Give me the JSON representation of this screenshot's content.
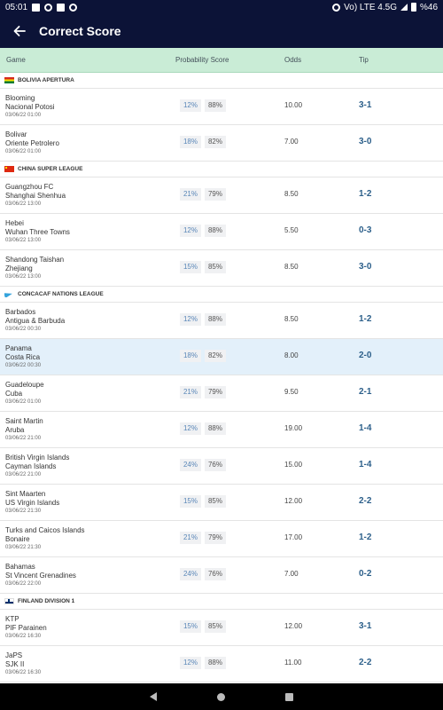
{
  "status": {
    "time": "05:01",
    "right_text": "Vo) LTE 4.5G",
    "battery": "%46"
  },
  "app": {
    "title": "Correct Score"
  },
  "columns": {
    "game": "Game",
    "prob": "Probability Score",
    "odds": "Odds",
    "tip": "Tip"
  },
  "leagues": [
    {
      "name": "BOLIVIA APERTURA",
      "flag": "bolivia-flag",
      "matches": [
        {
          "home": "Blooming",
          "away": "Nacional Potosi",
          "date": "03/06/22 01:00",
          "p1": "12%",
          "p2": "88%",
          "odds": "10.00",
          "tip": "3-1"
        },
        {
          "home": "Bolivar",
          "away": "Oriente Petrolero",
          "date": "03/06/22 01:00",
          "p1": "18%",
          "p2": "82%",
          "odds": "7.00",
          "tip": "3-0"
        }
      ]
    },
    {
      "name": "CHINA SUPER LEAGUE",
      "flag": "china-flag",
      "matches": [
        {
          "home": "Guangzhou FC",
          "away": "Shanghai Shenhua",
          "date": "03/06/22 13:00",
          "p1": "21%",
          "p2": "79%",
          "odds": "8.50",
          "tip": "1-2"
        },
        {
          "home": "Hebei",
          "away": "Wuhan Three Towns",
          "date": "03/06/22 13:00",
          "p1": "12%",
          "p2": "88%",
          "odds": "5.50",
          "tip": "0-3"
        },
        {
          "home": "Shandong Taishan",
          "away": "Zhejiang",
          "date": "03/06/22 13:00",
          "p1": "15%",
          "p2": "85%",
          "odds": "8.50",
          "tip": "3-0"
        }
      ]
    },
    {
      "name": "CONCACAF NATIONS LEAGUE",
      "flag": "concacaf-flag",
      "matches": [
        {
          "home": "Barbados",
          "away": "Antigua & Barbuda",
          "date": "03/06/22 00:30",
          "p1": "12%",
          "p2": "88%",
          "odds": "8.50",
          "tip": "1-2"
        },
        {
          "home": "Panama",
          "away": "Costa Rica",
          "date": "03/06/22 00:30",
          "p1": "18%",
          "p2": "82%",
          "odds": "8.00",
          "tip": "2-0",
          "selected": true
        },
        {
          "home": "Guadeloupe",
          "away": "Cuba",
          "date": "03/06/22 01:00",
          "p1": "21%",
          "p2": "79%",
          "odds": "9.50",
          "tip": "2-1"
        },
        {
          "home": "Saint Martin",
          "away": "Aruba",
          "date": "03/06/22 21:00",
          "p1": "12%",
          "p2": "88%",
          "odds": "19.00",
          "tip": "1-4"
        },
        {
          "home": "British Virgin Islands",
          "away": "Cayman Islands",
          "date": "03/06/22 21:00",
          "p1": "24%",
          "p2": "76%",
          "odds": "15.00",
          "tip": "1-4"
        },
        {
          "home": "Sint Maarten",
          "away": "US Virgin Islands",
          "date": "03/06/22 21:30",
          "p1": "15%",
          "p2": "85%",
          "odds": "12.00",
          "tip": "2-2"
        },
        {
          "home": "Turks and Caicos Islands",
          "away": "Bonaire",
          "date": "03/06/22 21:30",
          "p1": "21%",
          "p2": "79%",
          "odds": "17.00",
          "tip": "1-2"
        },
        {
          "home": "Bahamas",
          "away": "St Vincent Grenadines",
          "date": "03/06/22 22:00",
          "p1": "24%",
          "p2": "76%",
          "odds": "7.00",
          "tip": "0-2"
        }
      ]
    },
    {
      "name": "FINLAND DIVISION 1",
      "flag": "finland-flag",
      "matches": [
        {
          "home": "KTP",
          "away": "PIF Parainen",
          "date": "03/06/22 16:30",
          "p1": "15%",
          "p2": "85%",
          "odds": "12.00",
          "tip": "3-1"
        },
        {
          "home": "JaPS",
          "away": "SJK II",
          "date": "03/06/22 16:30",
          "p1": "12%",
          "p2": "88%",
          "odds": "11.00",
          "tip": "2-2"
        }
      ]
    }
  ]
}
